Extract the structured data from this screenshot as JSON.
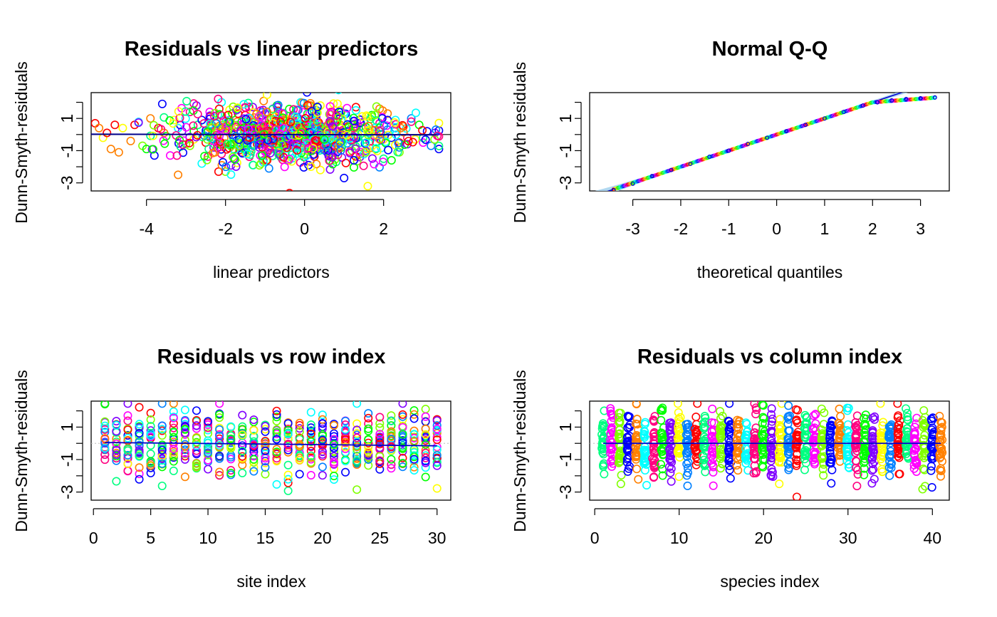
{
  "figure": {
    "background": "#ffffff",
    "palette": [
      "#ff0000",
      "#ff8000",
      "#ffff00",
      "#80ff00",
      "#00ff00",
      "#00ff80",
      "#00ffff",
      "#0080ff",
      "#0000ff",
      "#8000ff",
      "#ff00ff",
      "#ff0080"
    ]
  },
  "chart_data": [
    {
      "id": "resid-vs-linpred",
      "type": "scatter",
      "title": "Residuals vs linear predictors",
      "xlabel": "linear predictors",
      "ylabel": "Dunn-Smyth-residuals",
      "xlim": [
        -5.4,
        3.7
      ],
      "ylim": [
        -3.5,
        2.6
      ],
      "xticks": [
        -4,
        -2,
        0,
        2
      ],
      "yticks": [
        -3,
        -2,
        -1,
        0,
        1,
        2
      ],
      "ytick_labels": [
        "-3",
        "",
        "-1",
        "",
        "1",
        ""
      ],
      "reference_line_y": 0,
      "smooth_color": "#00008b",
      "marker": "open-circle",
      "color_scale": "rainbow by site",
      "points": [
        [
          -5.3,
          0.7,
          0
        ],
        [
          -5.2,
          0.4,
          1
        ],
        [
          -5.1,
          -0.2,
          2
        ],
        [
          -5.0,
          0.1,
          0
        ],
        [
          -4.9,
          -0.9,
          1
        ],
        [
          -4.8,
          0.6,
          0
        ],
        [
          -4.7,
          -1.1,
          1
        ],
        [
          -4.6,
          0.4,
          2
        ],
        [
          -4.4,
          -0.4,
          1
        ],
        [
          -4.3,
          0.6,
          0
        ],
        [
          -4.1,
          -0.7,
          3
        ],
        [
          -4.0,
          -0.9,
          4
        ],
        [
          -3.9,
          1.0,
          1
        ],
        [
          -3.8,
          -1.3,
          8
        ],
        [
          -3.7,
          0.4,
          0
        ],
        [
          -3.6,
          1.9,
          8
        ],
        [
          -3.5,
          -0.1,
          4
        ],
        [
          -3.4,
          -1.3,
          10
        ],
        [
          -3.3,
          0.9,
          2
        ],
        [
          -3.2,
          -2.5,
          1
        ],
        [
          -3.1,
          0.2,
          9
        ],
        [
          -3.0,
          -0.6,
          3
        ],
        [
          -2.9,
          1.4,
          11
        ],
        [
          -2.8,
          -0.3,
          2
        ],
        [
          -2.7,
          0.6,
          5
        ],
        [
          -2.6,
          -1.8,
          6
        ],
        [
          -2.5,
          0.1,
          7
        ],
        [
          -2.4,
          1.1,
          0
        ],
        [
          -2.3,
          -0.8,
          9
        ],
        [
          -2.2,
          0.4,
          2
        ],
        [
          -2.1,
          2.0,
          6
        ],
        [
          -2.0,
          -2.3,
          3
        ],
        [
          -1.9,
          0.9,
          10
        ],
        [
          -1.8,
          -0.2,
          4
        ],
        [
          -1.7,
          1.6,
          5
        ],
        [
          -1.6,
          -1.1,
          11
        ],
        [
          -1.5,
          0.3,
          8
        ],
        [
          -1.4,
          1.7,
          1
        ],
        [
          -1.3,
          -1.9,
          6
        ],
        [
          -1.2,
          0.7,
          3
        ],
        [
          -1.1,
          -0.5,
          0
        ],
        [
          -1.0,
          1.3,
          9
        ],
        [
          -0.9,
          -2.1,
          7
        ],
        [
          -0.8,
          0.2,
          2
        ],
        [
          -0.7,
          1.8,
          4
        ],
        [
          -0.6,
          -0.9,
          10
        ],
        [
          -0.5,
          0.5,
          11
        ],
        [
          -0.4,
          -1.6,
          5
        ],
        [
          -0.3,
          1.1,
          1
        ],
        [
          -0.2,
          -0.3,
          8
        ],
        [
          -0.1,
          2.0,
          6
        ],
        [
          0.0,
          -1.2,
          3
        ],
        [
          0.1,
          0.8,
          0
        ],
        [
          0.2,
          -0.6,
          9
        ],
        [
          0.3,
          1.5,
          7
        ],
        [
          0.4,
          -2.2,
          2
        ],
        [
          0.5,
          0.3,
          4
        ],
        [
          0.6,
          -0.8,
          10
        ],
        [
          0.7,
          1.4,
          11
        ],
        [
          0.8,
          -1.7,
          5
        ],
        [
          0.9,
          0.6,
          1
        ],
        [
          1.0,
          -2.7,
          8
        ],
        [
          1.1,
          1.0,
          6
        ],
        [
          1.2,
          -0.4,
          3
        ],
        [
          1.3,
          1.7,
          0
        ],
        [
          1.4,
          -1.4,
          9
        ],
        [
          1.5,
          0.4,
          7
        ],
        [
          1.6,
          -3.2,
          2
        ],
        [
          1.7,
          1.2,
          4
        ],
        [
          1.8,
          -0.9,
          10
        ],
        [
          1.9,
          0.7,
          11
        ],
        [
          2.0,
          -1.5,
          5
        ],
        [
          2.1,
          1.3,
          1
        ],
        [
          2.2,
          -0.2,
          8
        ],
        [
          2.3,
          0.9,
          6
        ],
        [
          2.4,
          -1.1,
          3
        ],
        [
          2.5,
          0.5,
          0
        ],
        [
          2.6,
          -0.6,
          9
        ],
        [
          2.7,
          1.0,
          7
        ],
        [
          2.8,
          -0.3,
          2
        ],
        [
          2.9,
          0.6,
          4
        ],
        [
          3.0,
          -0.5,
          10
        ],
        [
          3.1,
          0.2,
          8
        ],
        [
          3.2,
          -0.7,
          7
        ],
        [
          3.3,
          0.1,
          9
        ],
        [
          3.4,
          -0.9,
          8
        ],
        [
          -2.5,
          -0.5,
          0
        ],
        [
          -2.2,
          -0.1,
          5
        ],
        [
          -1.9,
          0.3,
          9
        ],
        [
          -1.6,
          -0.6,
          2
        ],
        [
          -1.3,
          0.1,
          7
        ],
        [
          -1.0,
          -0.3,
          11
        ],
        [
          -0.7,
          0.4,
          4
        ],
        [
          -0.4,
          -0.2,
          1
        ],
        [
          -0.1,
          0.6,
          6
        ],
        [
          0.2,
          -0.4,
          10
        ],
        [
          0.5,
          0.2,
          3
        ],
        [
          0.8,
          -0.1,
          8
        ],
        [
          1.1,
          0.5,
          0
        ],
        [
          1.4,
          -0.5,
          5
        ],
        [
          1.7,
          0.3,
          9
        ],
        [
          2.0,
          -0.3,
          2
        ],
        [
          2.3,
          0.4,
          7
        ],
        [
          2.6,
          -0.2,
          11
        ],
        [
          -2.8,
          0.2,
          4
        ],
        [
          -1.7,
          0.8,
          1
        ],
        [
          -0.9,
          -1.0,
          6
        ],
        [
          0.3,
          1.0,
          10
        ],
        [
          1.2,
          -1.0,
          3
        ],
        [
          2.1,
          0.9,
          8
        ],
        [
          -1.5,
          1.2,
          0
        ],
        [
          -0.6,
          -1.4,
          5
        ],
        [
          0.7,
          -1.3,
          9
        ],
        [
          1.6,
          1.1,
          2
        ],
        [
          2.4,
          -0.8,
          7
        ],
        [
          -2.1,
          -1.2,
          11
        ],
        [
          -3.2,
          0.4,
          6
        ],
        [
          -2.9,
          -0.7,
          3
        ],
        [
          -2.6,
          0.9,
          8
        ],
        [
          -2.3,
          -0.3,
          1
        ],
        [
          -2.0,
          0.5,
          10
        ],
        [
          -1.8,
          -0.9,
          4
        ],
        [
          -1.5,
          0.2,
          7
        ],
        [
          -1.2,
          -0.6,
          0
        ],
        [
          -0.9,
          0.9,
          11
        ],
        [
          -0.6,
          -0.2,
          5
        ],
        [
          -0.3,
          1.1,
          9
        ],
        [
          0.0,
          -0.7,
          2
        ],
        [
          0.3,
          0.4,
          6
        ],
        [
          0.6,
          -1.1,
          3
        ],
        [
          0.9,
          1.2,
          8
        ],
        [
          1.2,
          -0.3,
          1
        ],
        [
          1.5,
          0.8,
          10
        ],
        [
          1.8,
          -0.9,
          4
        ],
        [
          2.1,
          0.3,
          7
        ],
        [
          2.4,
          -0.5,
          0
        ],
        [
          2.7,
          0.8,
          11
        ],
        [
          3.0,
          -0.2,
          5
        ],
        [
          -0.8,
          1.6,
          9
        ],
        [
          0.4,
          1.8,
          2
        ],
        [
          1.3,
          1.5,
          6
        ],
        [
          -1.1,
          -1.8,
          3
        ],
        [
          0.1,
          -1.9,
          8
        ],
        [
          1.9,
          1.6,
          1
        ],
        [
          -2.4,
          1.4,
          10
        ],
        [
          2.2,
          -1.6,
          4
        ]
      ]
    },
    {
      "id": "normal-qq",
      "type": "scatter",
      "title": "Normal Q-Q",
      "xlabel": "theoretical quantiles",
      "ylabel": "Dunn-Smyth residuals",
      "xlim": [
        -3.9,
        3.6
      ],
      "ylim": [
        -3.5,
        2.6
      ],
      "xticks": [
        -3,
        -2,
        -1,
        0,
        1,
        2,
        3
      ],
      "yticks": [
        -3,
        -2,
        -1,
        0,
        1,
        2
      ],
      "ytick_labels": [
        "-3",
        "",
        "-1",
        "",
        "1",
        ""
      ],
      "line_color": "#0000cd",
      "band_color": "#a8d4ee",
      "qq_line": {
        "intercept": 0,
        "slope": 1
      },
      "points": [
        [
          -3.4,
          -3.45
        ],
        [
          -3.0,
          -3.05
        ],
        [
          -2.6,
          -2.58
        ],
        [
          -2.2,
          -2.2
        ],
        [
          -1.8,
          -1.82
        ],
        [
          -1.4,
          -1.38
        ],
        [
          -1.0,
          -1.0
        ],
        [
          -0.6,
          -0.58
        ],
        [
          -0.2,
          -0.2
        ],
        [
          0.2,
          0.2
        ],
        [
          0.6,
          0.6
        ],
        [
          1.0,
          1.0
        ],
        [
          1.4,
          1.4
        ],
        [
          1.8,
          1.8
        ],
        [
          2.1,
          2.0
        ],
        [
          2.4,
          2.12
        ],
        [
          2.7,
          2.2
        ],
        [
          3.0,
          2.25
        ],
        [
          3.3,
          2.3
        ]
      ]
    },
    {
      "id": "resid-vs-row",
      "type": "scatter",
      "title": "Residuals vs row index",
      "xlabel": "site index",
      "ylabel": "Dunn-Smyth-residuals",
      "xlim": [
        -0.2,
        31.2
      ],
      "ylim": [
        -3.5,
        2.6
      ],
      "xticks": [
        0,
        5,
        10,
        15,
        20,
        25,
        30
      ],
      "yticks": [
        -3,
        -2,
        -1,
        0,
        1,
        2
      ],
      "ytick_labels": [
        "-3",
        "",
        "-1",
        "",
        "1",
        ""
      ],
      "groups": 30,
      "smooth": {
        "x": [
          1,
          30
        ],
        "y": [
          0.05,
          -0.15
        ],
        "color": "#0000cd"
      },
      "reference_line_y": 0,
      "marker": "open-circle"
    },
    {
      "id": "resid-vs-column",
      "type": "scatter",
      "title": "Residuals vs column index",
      "xlabel": "species index",
      "ylabel": "Dunn-Smyth-residuals",
      "xlim": [
        -0.6,
        42.0
      ],
      "ylim": [
        -3.5,
        2.6
      ],
      "xticks": [
        0,
        10,
        20,
        30,
        40
      ],
      "yticks": [
        -3,
        -2,
        -1,
        0,
        1,
        2
      ],
      "ytick_labels": [
        "-3",
        "",
        "-1",
        "",
        "1",
        ""
      ],
      "groups": 41,
      "smooth": {
        "x": [
          1,
          41
        ],
        "y": [
          0.0,
          0.0
        ],
        "color": "#0000cd"
      },
      "reference_line_y": 0,
      "marker": "open-circle"
    }
  ]
}
